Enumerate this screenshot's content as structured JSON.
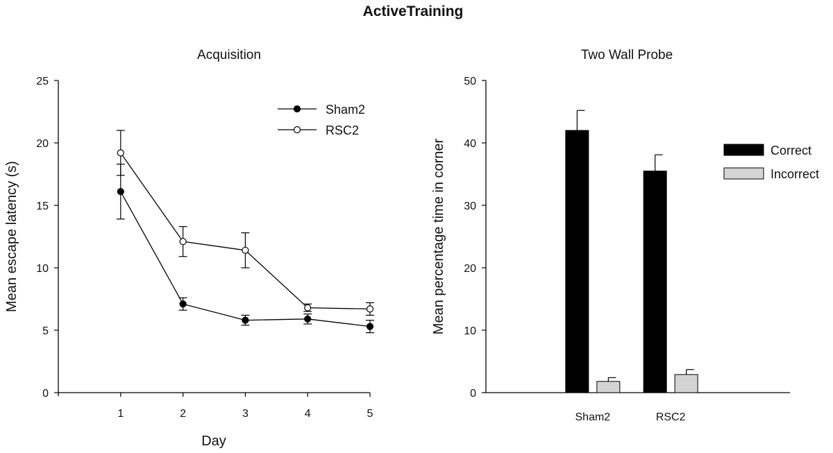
{
  "figure_title": "ActiveTraining",
  "chart_data": [
    {
      "type": "line",
      "title": "Acquisition",
      "xlabel": "Day",
      "ylabel": "Mean escape latency (s)",
      "x": [
        1,
        2,
        3,
        4,
        5
      ],
      "x_ticks": [
        "1",
        "2",
        "3",
        "4",
        "5"
      ],
      "xlim": [
        0,
        5
      ],
      "ylim": [
        0,
        25
      ],
      "y_ticks": [
        0,
        5,
        10,
        15,
        20,
        25
      ],
      "legend_position": "top-right",
      "series": [
        {
          "name": "Sham2",
          "marker": "filled-circle",
          "values": [
            16.1,
            7.1,
            5.8,
            5.9,
            5.3
          ],
          "errors": [
            2.2,
            0.5,
            0.4,
            0.4,
            0.5
          ]
        },
        {
          "name": "RSC2",
          "marker": "open-circle",
          "values": [
            19.2,
            12.1,
            11.4,
            6.8,
            6.7
          ],
          "errors": [
            1.8,
            1.2,
            1.4,
            0.3,
            0.5
          ]
        }
      ]
    },
    {
      "type": "bar",
      "title": "Two Wall Probe",
      "xlabel": "",
      "ylabel": "Mean percentage time in corner",
      "categories": [
        "Sham2",
        "RSC2"
      ],
      "ylim": [
        0,
        50
      ],
      "y_ticks": [
        0,
        10,
        20,
        30,
        40,
        50
      ],
      "legend_position": "right",
      "series": [
        {
          "name": "Correct",
          "color": "#000000",
          "values": [
            42.0,
            35.5
          ],
          "errors": [
            3.2,
            2.6
          ]
        },
        {
          "name": "Incorrect",
          "color": "#d4d4d4",
          "values": [
            1.8,
            2.9
          ],
          "errors": [
            0.6,
            0.8
          ]
        }
      ]
    }
  ]
}
